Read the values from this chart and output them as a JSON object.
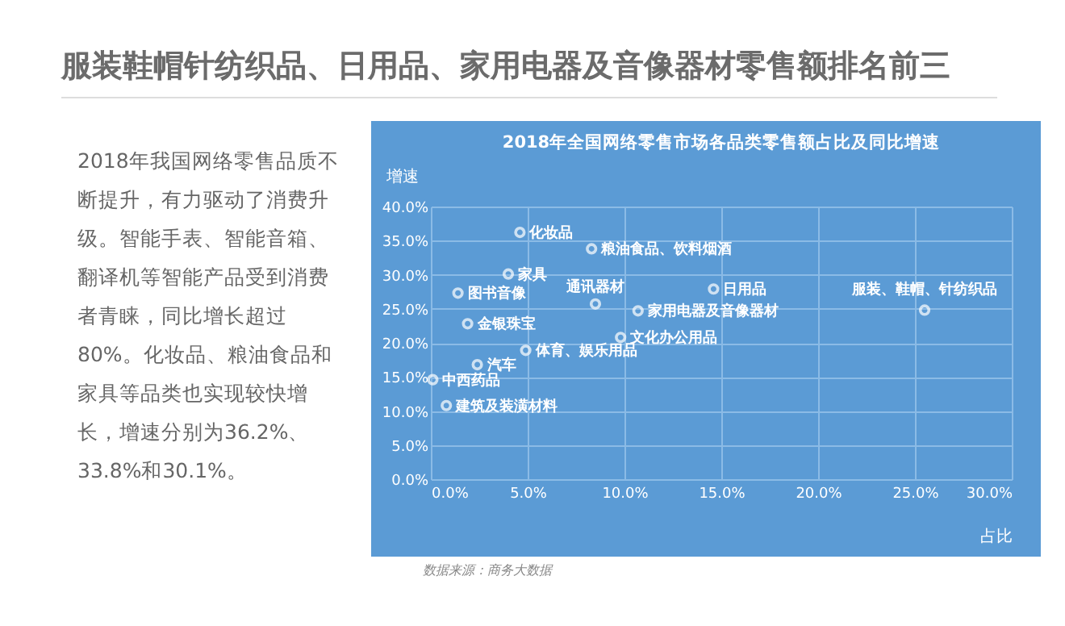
{
  "chart_data": {
    "type": "scatter",
    "title": "服装鞋帽针纺织品、日用品、家用电器及音像器材零售额排名前三",
    "subtitle": "2018年全国网络零售市场各品类零售额占比及同比增速",
    "xlabel": "占比",
    "ylabel": "增速",
    "annotations": [
      "2018年我国网络零售品质不断提升，有力驱动了消费升级。智能手表、智能音箱、翻译机等智能产品受到消费者青睐，同比增长超过80%。化妆品、粮油食品和家具等品类也实现较快增长，增速分别为36.2%、33.8%和30.1%。",
      "数据来源：商务大数据"
    ],
    "xlim": [
      0,
      30
    ],
    "ylim": [
      0,
      40
    ],
    "xticks": [
      {
        "value": 0,
        "label": "0.0%"
      },
      {
        "value": 5,
        "label": "5.0%"
      },
      {
        "value": 10,
        "label": "10.0%"
      },
      {
        "value": 15,
        "label": "15.0%"
      },
      {
        "value": 20,
        "label": "20.0%"
      },
      {
        "value": 25,
        "label": "25.0%"
      },
      {
        "value": 30,
        "label": "30.0%"
      }
    ],
    "yticks": [
      {
        "value": 0,
        "label": "0.0%"
      },
      {
        "value": 5,
        "label": "5.0%"
      },
      {
        "value": 10,
        "label": "10.0%"
      },
      {
        "value": 15,
        "label": "15.0%"
      },
      {
        "value": 20,
        "label": "20.0%"
      },
      {
        "value": 25,
        "label": "25.0%"
      },
      {
        "value": 30,
        "label": "30.0%"
      },
      {
        "value": 35,
        "label": "35.0%"
      },
      {
        "value": 40,
        "label": "40.0%"
      }
    ],
    "grid": true,
    "legend": false,
    "marker": "circle",
    "series": [
      {
        "name": "化妆品",
        "color": "#ffffff",
        "x": [
          4.6
        ],
        "values": [
          36.2
        ]
      },
      {
        "name": "粮油食品、饮料烟酒",
        "color": "#ffffff",
        "x": [
          8.3
        ],
        "values": [
          33.8
        ]
      },
      {
        "name": "家具",
        "color": "#ffffff",
        "x": [
          4.0
        ],
        "values": [
          30.1
        ]
      },
      {
        "name": "图书音像",
        "color": "#ffffff",
        "x": [
          1.4
        ],
        "values": [
          27.3
        ]
      },
      {
        "name": "通讯器材",
        "color": "#ffffff",
        "x": [
          8.5
        ],
        "values": [
          25.7
        ]
      },
      {
        "name": "日用品",
        "color": "#ffffff",
        "x": [
          14.6
        ],
        "values": [
          27.9
        ]
      },
      {
        "name": "家用电器及音像器材",
        "color": "#ffffff",
        "x": [
          10.7
        ],
        "values": [
          24.7
        ]
      },
      {
        "name": "服装、鞋帽、针纺织品",
        "color": "#ffffff",
        "x": [
          25.5
        ],
        "values": [
          24.8
        ]
      },
      {
        "name": "金银珠宝",
        "color": "#ffffff",
        "x": [
          1.9
        ],
        "values": [
          22.8
        ]
      },
      {
        "name": "文化办公用品",
        "color": "#ffffff",
        "x": [
          9.8
        ],
        "values": [
          20.8
        ]
      },
      {
        "name": "体育、娱乐用品",
        "color": "#ffffff",
        "x": [
          4.9
        ],
        "values": [
          18.9
        ]
      },
      {
        "name": "汽车",
        "color": "#ffffff",
        "x": [
          2.4
        ],
        "values": [
          16.8
        ]
      },
      {
        "name": "中西药品",
        "color": "#ffffff",
        "x": [
          0.1
        ],
        "values": [
          14.6
        ]
      },
      {
        "name": "建筑及装潢材料",
        "color": "#ffffff",
        "x": [
          0.8
        ],
        "values": [
          10.8
        ]
      }
    ]
  }
}
